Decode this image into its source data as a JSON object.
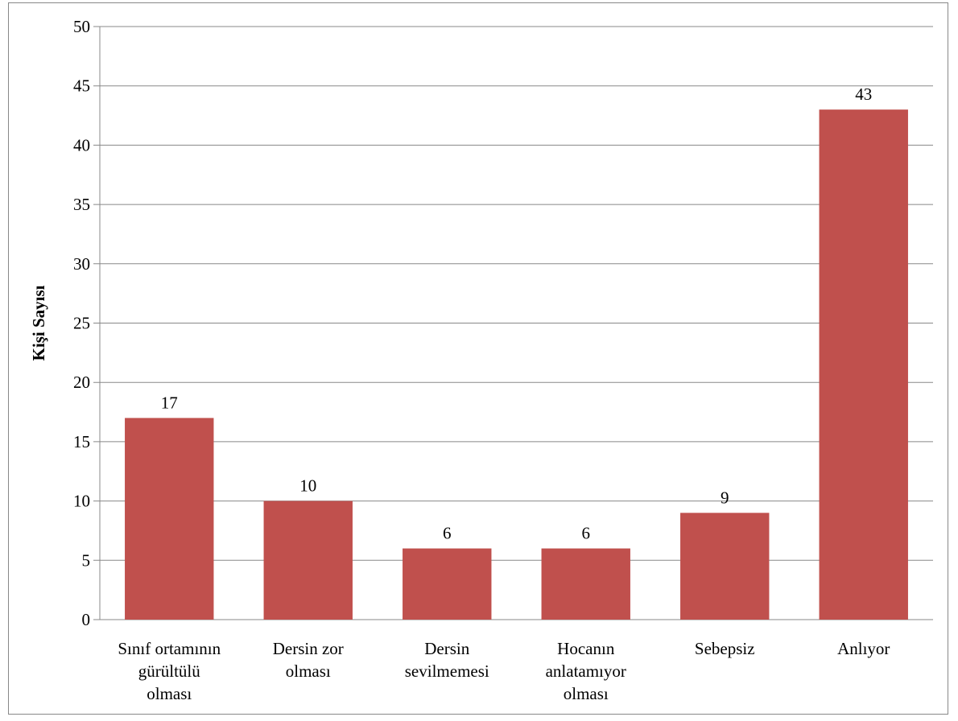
{
  "chart_data": {
    "type": "bar",
    "categories": [
      [
        "Sınıf ortamının",
        "gürültülü",
        "olması"
      ],
      [
        "Dersin zor",
        "olması"
      ],
      [
        "Dersin",
        "sevilmemesi"
      ],
      [
        "Hocanın",
        "anlatamıyor",
        "olması"
      ],
      [
        "Sebepsiz"
      ],
      [
        "Anlıyor"
      ]
    ],
    "values": [
      17,
      10,
      6,
      6,
      9,
      43
    ],
    "title": "",
    "xlabel": "",
    "ylabel": "Kişi Sayısı",
    "ylim": [
      0,
      50
    ],
    "yticks": [
      0,
      5,
      10,
      15,
      20,
      25,
      30,
      35,
      40,
      45,
      50
    ],
    "grid": true,
    "legend": "none",
    "bar_color": "#C0504D",
    "grid_color": "#888888"
  }
}
